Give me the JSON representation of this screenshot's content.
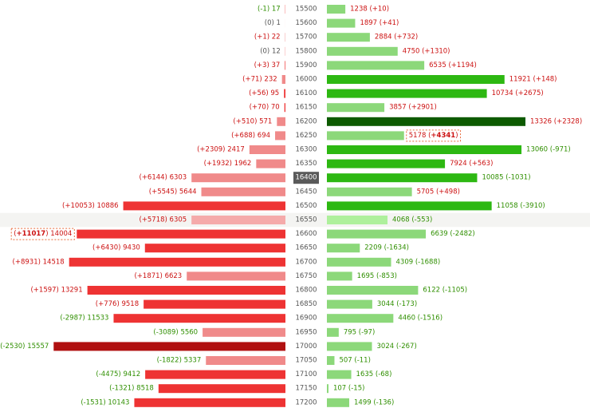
{
  "chart_data": {
    "type": "bar",
    "orientation": "horizontal-butterfly",
    "title": "",
    "xlabel": "",
    "ylabel": "",
    "selected_strike": "16400",
    "highlighted_row": "16550",
    "categories": [
      "15500",
      "15600",
      "15700",
      "15800",
      "15900",
      "16000",
      "16100",
      "16150",
      "16200",
      "16250",
      "16300",
      "16350",
      "16400",
      "16450",
      "16500",
      "16550",
      "16600",
      "16650",
      "16700",
      "16750",
      "16800",
      "16850",
      "16900",
      "16950",
      "17000",
      "17050",
      "17100",
      "17150",
      "17200"
    ],
    "series": [
      {
        "name": "left",
        "values": [
          17,
          1,
          22,
          12,
          37,
          232,
          95,
          70,
          571,
          694,
          2417,
          1962,
          6303,
          5644,
          10886,
          6305,
          14004,
          9430,
          14518,
          6623,
          13291,
          9518,
          11533,
          5560,
          15557,
          5337,
          9412,
          8518,
          10143
        ],
        "changes": [
          "(-1)",
          "(0)",
          "(+1)",
          "(0)",
          "(+3)",
          "(+71)",
          "(+56)",
          "(+70)",
          "(+510)",
          "(+688)",
          "(+2309)",
          "(+1932)",
          "(+6144)",
          "(+5545)",
          "(+10053)",
          "(+5718)",
          "(+11017)",
          "(+6430)",
          "(+8931)",
          "(+1871)",
          "(+1597)",
          "(+776)",
          "(-2987)",
          "(-3089)",
          "(-2530)",
          "(-1822)",
          "(-4475)",
          "(-1321)",
          "(-1531)"
        ],
        "colors": [
          "#ee3333",
          "#ee3333",
          "#f08a8a",
          "#ee3333",
          "#ee3333",
          "#f08a8a",
          "#ee3333",
          "#ee3333",
          "#f08a8a",
          "#f08a8a",
          "#f08a8a",
          "#f08a8a",
          "#f08a8a",
          "#f08a8a",
          "#ee3333",
          "#f5aaaa",
          "#ee3333",
          "#ee3333",
          "#ee3333",
          "#f08a8a",
          "#ee3333",
          "#ee3333",
          "#ee3333",
          "#f08a8a",
          "#b01010",
          "#f08a8a",
          "#ee3333",
          "#ee3333",
          "#ee3333"
        ]
      },
      {
        "name": "right",
        "values": [
          1238,
          1897,
          2884,
          4750,
          6535,
          11921,
          10734,
          3857,
          13326,
          5178,
          13060,
          7924,
          10085,
          5705,
          11058,
          4068,
          6639,
          2209,
          4309,
          1695,
          6122,
          3044,
          4460,
          795,
          3024,
          507,
          1635,
          107,
          1499
        ],
        "changes": [
          "(+10)",
          "(+41)",
          "(+732)",
          "(+1310)",
          "(+1194)",
          "(+148)",
          "(+2675)",
          "(+2901)",
          "(+2328)",
          "(+4341)",
          "(-971)",
          "(+563)",
          "(-1031)",
          "(+498)",
          "(-3910)",
          "(-553)",
          "(-2482)",
          "(-1634)",
          "(-1688)",
          "(-853)",
          "(-1105)",
          "(-173)",
          "(-1516)",
          "(-97)",
          "(-267)",
          "(-11)",
          "(-68)",
          "(-15)",
          "(-136)"
        ],
        "colors": [
          "#8cd87a",
          "#8cd87a",
          "#8cd87a",
          "#8cd87a",
          "#8cd87a",
          "#2db812",
          "#2db812",
          "#8cd87a",
          "#0c5a00",
          "#8cd87a",
          "#2db812",
          "#2db812",
          "#2db812",
          "#8cd87a",
          "#2db812",
          "#aef09c",
          "#8cd87a",
          "#8cd87a",
          "#8cd87a",
          "#8cd87a",
          "#8cd87a",
          "#8cd87a",
          "#8cd87a",
          "#8cd87a",
          "#8cd87a",
          "#8cd87a",
          "#8cd87a",
          "#8cd87a",
          "#8cd87a"
        ]
      }
    ],
    "highlighted_labels": [
      {
        "series": "left",
        "category": "16600",
        "change": "(+11017)"
      },
      {
        "series": "right",
        "category": "16250",
        "change": "(+4341)"
      }
    ],
    "text_colors": {
      "positive": "#cc1111",
      "negative": "#2f8f00",
      "neutral": "#555555",
      "strike": "#555555"
    },
    "xlim_left": [
      0,
      16000
    ],
    "xlim_right": [
      0,
      16000
    ]
  }
}
